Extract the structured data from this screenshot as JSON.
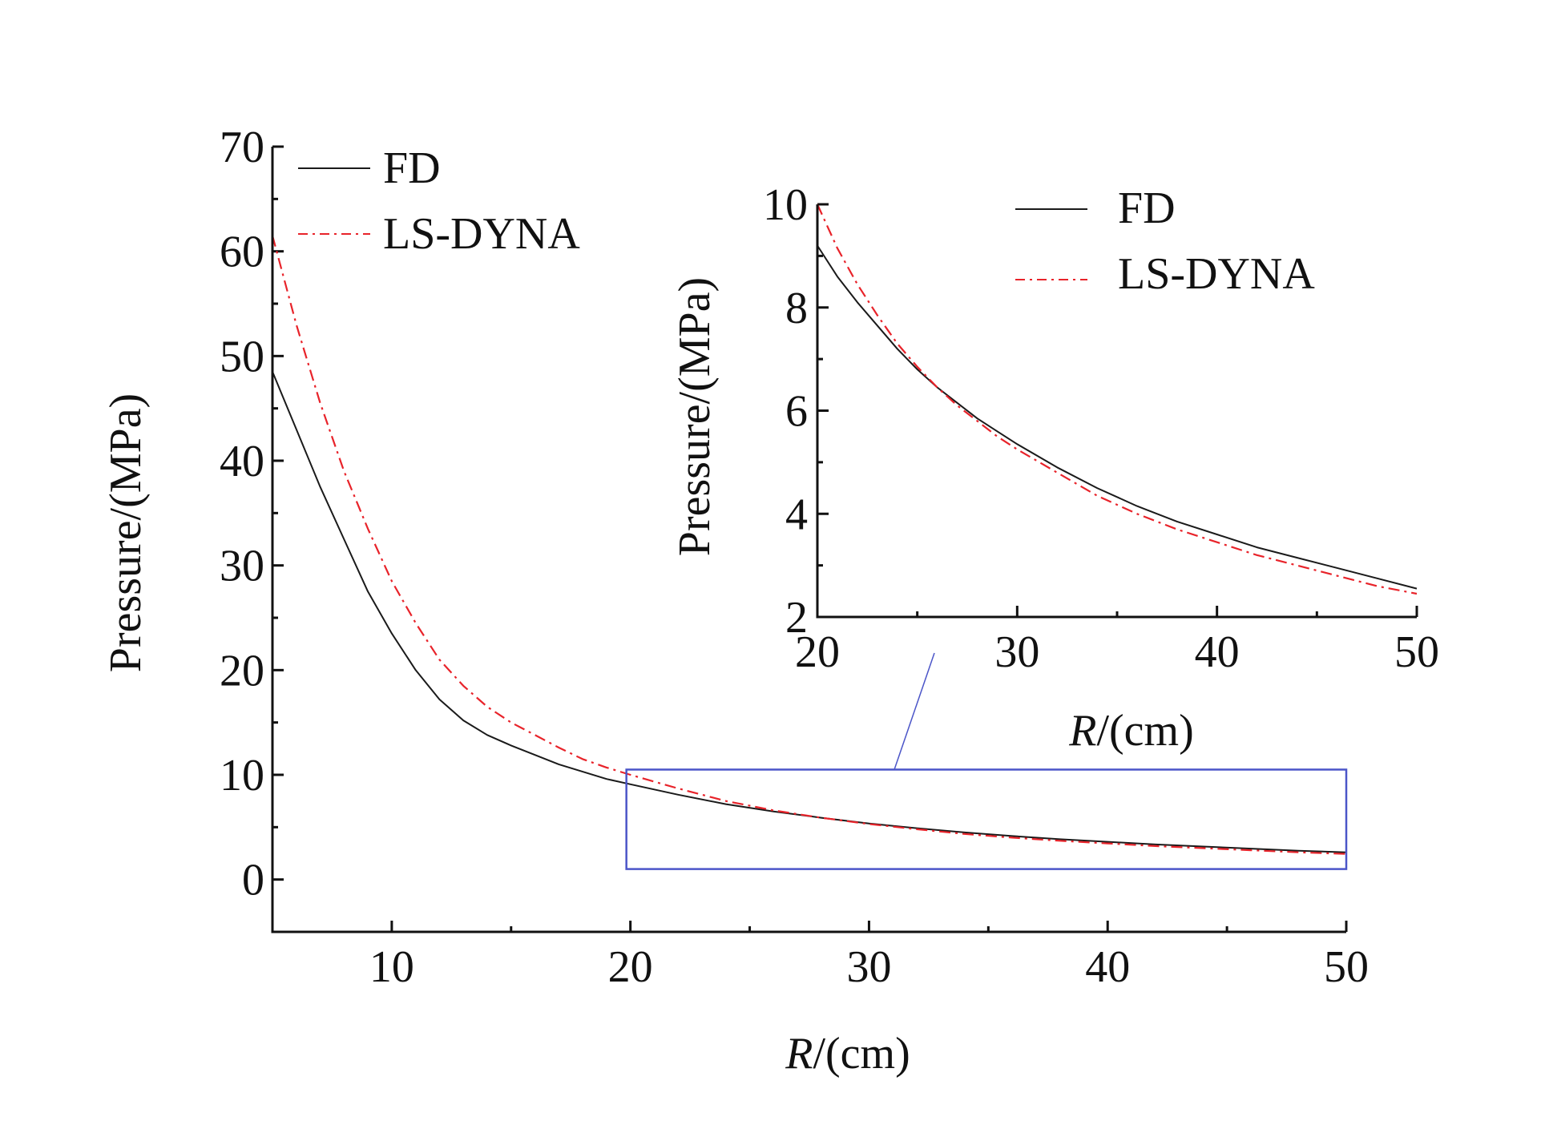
{
  "colors": {
    "fd": "#1a1a1a",
    "lsdyna": "#e8232a",
    "zoom_box": "#4b55c8",
    "axes": "#111111"
  },
  "chart_data": [
    {
      "id": "main",
      "type": "line",
      "xlabel_italic": "R",
      "xlabel_rest": "/(cm)",
      "ylabel": "Pressure/(MPa)",
      "xlim": [
        5,
        50
      ],
      "ylim": [
        -5,
        70
      ],
      "xticks": [
        10,
        20,
        30,
        40,
        50
      ],
      "xtick_labels": [
        "10",
        "20",
        "30",
        "40",
        "50"
      ],
      "yticks": [
        0,
        10,
        20,
        30,
        40,
        50,
        60,
        70
      ],
      "ytick_labels": [
        "0",
        "10",
        "20",
        "30",
        "40",
        "50",
        "60",
        "70"
      ],
      "legend_position": "top-left",
      "grid": false,
      "zoom_box": {
        "x": [
          20,
          50
        ],
        "y": [
          1,
          10.5
        ]
      },
      "x": [
        5,
        6,
        7,
        8,
        9,
        10,
        11,
        12,
        13,
        14,
        15,
        16,
        17,
        18,
        19,
        20,
        22,
        24,
        26,
        28,
        30,
        32,
        34,
        36,
        38,
        40,
        42,
        44,
        46,
        48,
        50
      ],
      "series": [
        {
          "name": "FD",
          "style": "solid",
          "values": [
            48.5,
            43.0,
            37.5,
            32.5,
            27.5,
            23.5,
            20.0,
            17.2,
            15.2,
            13.8,
            12.8,
            11.9,
            11.0,
            10.3,
            9.6,
            9.1,
            8.1,
            7.2,
            6.5,
            5.9,
            5.35,
            4.9,
            4.5,
            4.15,
            3.85,
            3.6,
            3.35,
            3.15,
            2.95,
            2.75,
            2.6
          ]
        },
        {
          "name": "LS-DYNA",
          "style": "dash-dot",
          "values": [
            61.5,
            53.0,
            45.5,
            39.0,
            33.5,
            28.5,
            24.5,
            21.0,
            18.5,
            16.5,
            15.0,
            13.8,
            12.6,
            11.5,
            10.7,
            10.0,
            8.7,
            7.5,
            6.6,
            5.9,
            5.3,
            4.8,
            4.35,
            4.0,
            3.7,
            3.45,
            3.2,
            3.0,
            2.8,
            2.6,
            2.45
          ]
        }
      ]
    },
    {
      "id": "inset",
      "type": "line",
      "xlabel_italic": "R",
      "xlabel_rest": "/(cm)",
      "ylabel": "Pressure/(MPa)",
      "xlim": [
        20,
        50
      ],
      "ylim": [
        2,
        10
      ],
      "xticks": [
        20,
        30,
        40,
        50
      ],
      "xtick_labels": [
        "20",
        "30",
        "40",
        "50"
      ],
      "yticks": [
        2,
        4,
        6,
        8,
        10
      ],
      "ytick_labels": [
        "2",
        "4",
        "6",
        "8",
        "10"
      ],
      "legend_position": "top-right",
      "grid": false,
      "x": [
        20,
        21,
        22,
        23,
        24,
        25,
        26,
        27,
        28,
        29,
        30,
        32,
        34,
        36,
        38,
        40,
        42,
        44,
        46,
        48,
        50
      ],
      "series": [
        {
          "name": "FD",
          "style": "solid",
          "values": [
            9.2,
            8.6,
            8.1,
            7.65,
            7.2,
            6.8,
            6.45,
            6.15,
            5.85,
            5.6,
            5.35,
            4.9,
            4.5,
            4.15,
            3.85,
            3.6,
            3.35,
            3.15,
            2.95,
            2.75,
            2.55
          ]
        },
        {
          "name": "LS-DYNA",
          "style": "dash-dot",
          "values": [
            10.0,
            9.15,
            8.45,
            7.85,
            7.3,
            6.85,
            6.45,
            6.1,
            5.8,
            5.5,
            5.25,
            4.8,
            4.35,
            4.0,
            3.7,
            3.45,
            3.2,
            3.0,
            2.8,
            2.6,
            2.45
          ]
        }
      ]
    }
  ]
}
